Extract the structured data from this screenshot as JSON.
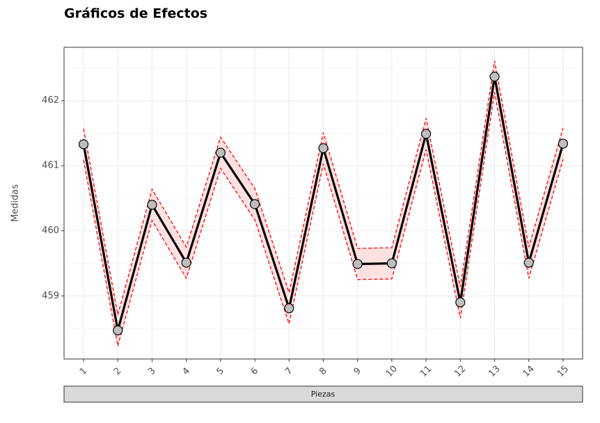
{
  "chart_data": {
    "type": "line",
    "title": "Gráficos de Efectos",
    "x_label": "Piezas",
    "y_label": "Medidas",
    "x": [
      1,
      2,
      3,
      4,
      5,
      6,
      7,
      8,
      9,
      10,
      11,
      12,
      13,
      14,
      15
    ],
    "series": [
      {
        "color": "#000000",
        "values": [
          461.33,
          458.47,
          460.4,
          459.51,
          461.2,
          460.41,
          458.81,
          461.27,
          459.49,
          459.5,
          461.49,
          458.9,
          462.37,
          459.51,
          461.34
        ]
      }
    ],
    "interval": {
      "color": "#ff0000",
      "fill": "#ffdada",
      "upper": [
        461.57,
        458.71,
        460.64,
        459.75,
        461.44,
        460.65,
        459.05,
        461.51,
        459.73,
        459.74,
        461.73,
        459.14,
        462.61,
        459.75,
        461.58
      ],
      "lower": [
        461.09,
        458.23,
        460.16,
        459.27,
        460.96,
        460.17,
        458.57,
        461.03,
        459.25,
        459.26,
        461.25,
        458.66,
        462.13,
        459.27,
        461.1
      ]
    },
    "xlim": [
      0.43,
      15.57
    ],
    "xticks": [
      1,
      2,
      3,
      4,
      5,
      6,
      7,
      8,
      9,
      10,
      11,
      12,
      13,
      14,
      15
    ],
    "ylim": [
      458.03,
      462.82
    ],
    "yticks": [
      459,
      460,
      461,
      462
    ],
    "grid": true
  }
}
